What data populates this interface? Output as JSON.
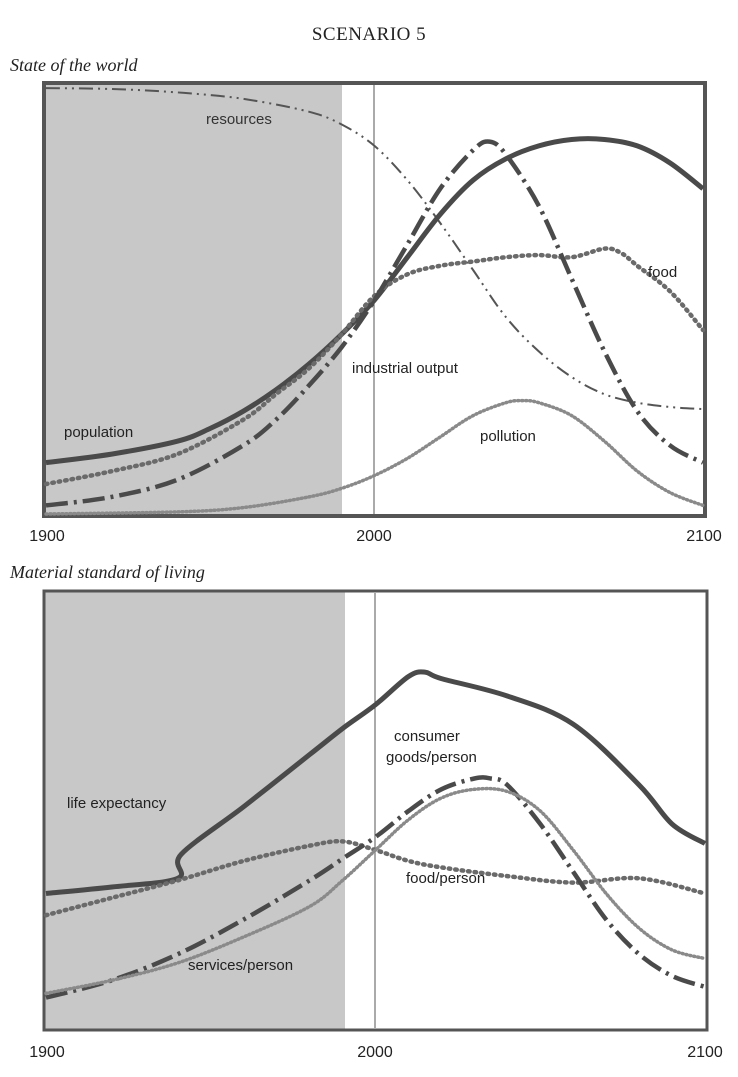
{
  "page": {
    "title": "SCENARIO 5"
  },
  "chart_data": [
    {
      "type": "line",
      "title": "State of the world",
      "xlim": [
        1900,
        2100
      ],
      "x_ticks": [
        "1900",
        "2000",
        "2100"
      ],
      "shaded_region": [
        1900,
        1990
      ],
      "reference_line_x": 2000,
      "series": [
        {
          "name": "resources",
          "style": "dash-dot-thin",
          "x": [
            1900,
            1920,
            1940,
            1960,
            1980,
            1990,
            2000,
            2010,
            2020,
            2030,
            2040,
            2050,
            2060,
            2070,
            2080,
            2090,
            2100
          ],
          "y": [
            0.995,
            0.993,
            0.985,
            0.97,
            0.94,
            0.91,
            0.86,
            0.78,
            0.68,
            0.57,
            0.46,
            0.38,
            0.32,
            0.28,
            0.26,
            0.25,
            0.245
          ]
        },
        {
          "name": "population",
          "style": "solid-thick",
          "x": [
            1900,
            1920,
            1940,
            1950,
            1960,
            1970,
            1980,
            1990,
            2000,
            2010,
            2020,
            2030,
            2040,
            2050,
            2060,
            2070,
            2080,
            2090,
            2100
          ],
          "y": [
            0.12,
            0.14,
            0.17,
            0.2,
            0.24,
            0.29,
            0.35,
            0.42,
            0.5,
            0.6,
            0.7,
            0.78,
            0.83,
            0.86,
            0.875,
            0.875,
            0.86,
            0.82,
            0.76
          ]
        },
        {
          "name": "food",
          "style": "dotted-thick",
          "x": [
            1900,
            1920,
            1940,
            1960,
            1970,
            1980,
            1990,
            2000,
            2010,
            2020,
            2030,
            2040,
            2050,
            2060,
            2070,
            2075,
            2080,
            2090,
            2100
          ],
          "y": [
            0.07,
            0.1,
            0.14,
            0.22,
            0.28,
            0.34,
            0.42,
            0.51,
            0.56,
            0.58,
            0.59,
            0.6,
            0.605,
            0.6,
            0.62,
            0.61,
            0.58,
            0.52,
            0.43
          ]
        },
        {
          "name": "industrial output",
          "style": "dash-dot-thick",
          "x": [
            1900,
            1920,
            1940,
            1960,
            1970,
            1980,
            1990,
            2000,
            2010,
            2020,
            2030,
            2035,
            2040,
            2050,
            2060,
            2070,
            2080,
            2090,
            2100
          ],
          "y": [
            0.02,
            0.04,
            0.08,
            0.16,
            0.22,
            0.3,
            0.39,
            0.5,
            0.63,
            0.76,
            0.85,
            0.87,
            0.84,
            0.72,
            0.55,
            0.38,
            0.24,
            0.16,
            0.12
          ]
        },
        {
          "name": "pollution",
          "style": "dotted-light",
          "x": [
            1900,
            1940,
            1960,
            1980,
            1990,
            2000,
            2010,
            2020,
            2030,
            2040,
            2045,
            2050,
            2060,
            2070,
            2080,
            2090,
            2100
          ],
          "y": [
            0.0,
            0.005,
            0.015,
            0.04,
            0.06,
            0.09,
            0.13,
            0.18,
            0.23,
            0.26,
            0.265,
            0.26,
            0.23,
            0.17,
            0.1,
            0.05,
            0.02
          ]
        }
      ]
    },
    {
      "type": "line",
      "title": "Material standard of living",
      "xlim": [
        1900,
        2100
      ],
      "x_ticks": [
        "1900",
        "2000",
        "2100"
      ],
      "shaded_region": [
        1900,
        1990
      ],
      "reference_line_x": 2000,
      "series": [
        {
          "name": "life expectancy",
          "label": "life expectancy",
          "style": "solid-thick",
          "x": [
            1900,
            1920,
            1940,
            1941,
            1960,
            1980,
            1990,
            2000,
            2010,
            2015,
            2020,
            2040,
            2060,
            2080,
            2090,
            2100
          ],
          "y": [
            0.31,
            0.325,
            0.345,
            0.4,
            0.51,
            0.63,
            0.69,
            0.745,
            0.81,
            0.82,
            0.805,
            0.765,
            0.7,
            0.56,
            0.47,
            0.425
          ]
        },
        {
          "name": "food/person",
          "label": "food/person",
          "style": "dotted-thick",
          "x": [
            1900,
            1920,
            1940,
            1960,
            1980,
            1990,
            2000,
            2010,
            2020,
            2040,
            2060,
            2080,
            2100
          ],
          "y": [
            0.26,
            0.3,
            0.34,
            0.385,
            0.42,
            0.43,
            0.41,
            0.385,
            0.37,
            0.35,
            0.335,
            0.345,
            0.31
          ]
        },
        {
          "name": "consumer goods/person",
          "label": "consumer goods/person",
          "style": "dash-dot-thick",
          "x": [
            1900,
            1920,
            1940,
            1960,
            1980,
            1990,
            2000,
            2010,
            2020,
            2030,
            2035,
            2040,
            2050,
            2060,
            2070,
            2080,
            2090,
            2100
          ],
          "y": [
            0.07,
            0.11,
            0.17,
            0.25,
            0.34,
            0.39,
            0.44,
            0.5,
            0.55,
            0.575,
            0.575,
            0.56,
            0.47,
            0.36,
            0.25,
            0.17,
            0.12,
            0.095
          ]
        },
        {
          "name": "services/person",
          "label": "services/person",
          "style": "dotted-light",
          "x": [
            1900,
            1920,
            1940,
            1960,
            1980,
            1990,
            2000,
            2010,
            2020,
            2030,
            2040,
            2050,
            2060,
            2070,
            2080,
            2090,
            2100
          ],
          "y": [
            0.08,
            0.11,
            0.15,
            0.21,
            0.28,
            0.34,
            0.41,
            0.48,
            0.53,
            0.55,
            0.545,
            0.5,
            0.41,
            0.31,
            0.23,
            0.18,
            0.16
          ]
        }
      ]
    }
  ]
}
